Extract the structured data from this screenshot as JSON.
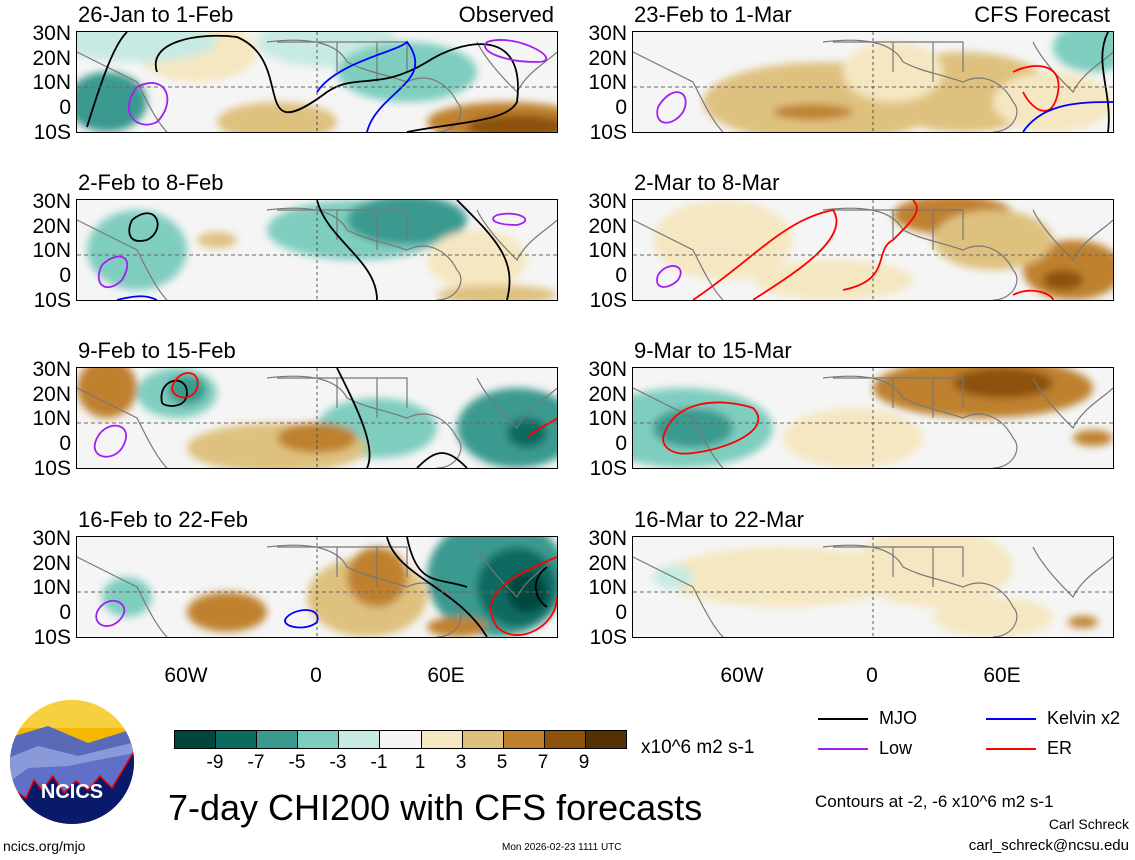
{
  "panels": [
    {
      "title": "26-Jan to 1-Feb",
      "tag": "Observed"
    },
    {
      "title": "23-Feb to 1-Mar",
      "tag": "CFS Forecast"
    },
    {
      "title": "2-Feb to 8-Feb",
      "tag": ""
    },
    {
      "title": "2-Mar to 8-Mar",
      "tag": ""
    },
    {
      "title": "9-Feb to 15-Feb",
      "tag": ""
    },
    {
      "title": "9-Mar to 15-Mar",
      "tag": ""
    },
    {
      "title": "16-Feb to 22-Feb",
      "tag": ""
    },
    {
      "title": "16-Mar to 22-Mar",
      "tag": ""
    }
  ],
  "lat_labels": [
    "30N",
    "20N",
    "10N",
    "0",
    "10S"
  ],
  "lon_labels": [
    "60W",
    "0",
    "60E"
  ],
  "colorbar": {
    "colors": [
      "#01463c",
      "#0c6b60",
      "#3a9a8f",
      "#7fcdbf",
      "#c7eae3",
      "#f5f5f5",
      "#f5e7c1",
      "#dfc17f",
      "#bf812d",
      "#8c510a",
      "#543005"
    ],
    "labels": [
      "-9",
      "-7",
      "-5",
      "-3",
      "-1",
      "1",
      "3",
      "5",
      "7",
      "9"
    ],
    "units": "x10^6 m2 s-1"
  },
  "legend": [
    {
      "label": "MJO",
      "color": "#000000"
    },
    {
      "label": "Kelvin x2",
      "color": "#0000ff"
    },
    {
      "label": "Low",
      "color": "#a020f0"
    },
    {
      "label": "ER",
      "color": "#ff0000"
    }
  ],
  "title": "7-day CHI200 with CFS forecasts",
  "contours_note": "Contours at -2, -6 x10^6 m2 s-1",
  "author": "Carl Schreck",
  "email": "carl_schreck@ncsu.edu",
  "website": "ncics.org/mjo",
  "timestamp": "Mon 2026-02-23 1111 UTC",
  "logo_text": "NCICS"
}
